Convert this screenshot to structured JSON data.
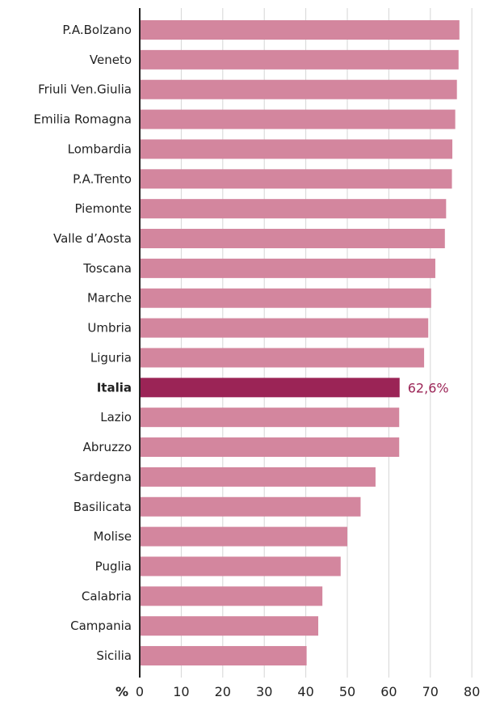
{
  "chart_data": {
    "type": "bar",
    "orientation": "horizontal",
    "categories": [
      "P.A.Bolzano",
      "Veneto",
      "Friuli Ven.Giulia",
      "Emilia Romagna",
      "Lombardia",
      "P.A.Trento",
      "Piemonte",
      "Valle d’Aosta",
      "Toscana",
      "Marche",
      "Umbria",
      "Liguria",
      "Italia",
      "Lazio",
      "Abruzzo",
      "Sardegna",
      "Basilicata",
      "Molise",
      "Puglia",
      "Calabria",
      "Campania",
      "Sicilia"
    ],
    "values": [
      77.0,
      76.8,
      76.4,
      76.0,
      75.3,
      75.2,
      73.8,
      73.5,
      71.2,
      70.2,
      69.5,
      68.5,
      62.6,
      62.5,
      62.5,
      56.8,
      53.2,
      50.0,
      48.4,
      44.0,
      43.0,
      40.2
    ],
    "highlight": {
      "category": "Italia",
      "label": "62,6%"
    },
    "xlim": [
      0,
      80
    ],
    "xticks": [
      0,
      10,
      20,
      30,
      40,
      50,
      60,
      70,
      80
    ],
    "unit_label": "%",
    "grid": "vertical",
    "colors": {
      "bar": "#d3869e",
      "highlight": "#9b2456",
      "grid": "#d6d6d6",
      "axis": "#222222"
    }
  }
}
